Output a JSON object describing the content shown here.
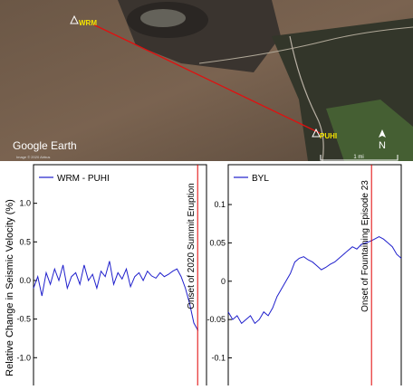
{
  "map": {
    "stations": [
      "WRM",
      "PUHI"
    ],
    "brand": "Google Earth",
    "credit": "Image © 2020 Airbus",
    "north": "N",
    "scale": "1 mi"
  },
  "chart_data": [
    {
      "type": "line",
      "y_label": "Relative Change in Seismic Velocity (%)",
      "x": [
        0,
        1,
        2,
        3,
        4,
        5,
        6,
        7,
        8,
        9,
        10,
        11,
        12,
        13,
        14,
        15,
        16,
        17,
        18,
        19,
        20,
        21,
        22,
        23,
        24,
        25,
        26,
        27,
        28,
        29,
        30,
        31,
        32,
        33,
        34,
        35,
        36,
        37,
        38,
        39
      ],
      "xlim": [
        0,
        41
      ],
      "series": [
        {
          "name": "WRM - PUHI",
          "color": "#1f1fcc",
          "values": [
            -0.1,
            0.05,
            -0.2,
            0.1,
            -0.05,
            0.15,
            0.0,
            0.2,
            -0.1,
            0.05,
            0.1,
            -0.05,
            0.2,
            0.0,
            0.08,
            -0.1,
            0.12,
            0.05,
            0.25,
            -0.05,
            0.1,
            0.02,
            0.15,
            -0.08,
            0.05,
            0.1,
            0.0,
            0.12,
            0.06,
            0.03,
            0.1,
            0.05,
            0.08,
            0.12,
            0.15,
            0.05,
            -0.1,
            -0.3,
            -0.55,
            -0.65
          ]
        }
      ],
      "ylim": [
        -1.36,
        1.5
      ],
      "yticks": [
        {
          "value": -1,
          "label": "-1.0"
        },
        -0.5,
        {
          "value": 0,
          "label": "0.0"
        },
        0.5,
        {
          "value": 1,
          "label": "1.0"
        }
      ],
      "vline": {
        "x": 38.9,
        "label": "Onset of 2020 Summit Eruption",
        "color": "#e00000"
      }
    },
    {
      "type": "line",
      "x": [
        0,
        1,
        2,
        3,
        4,
        5,
        6,
        7,
        8,
        9,
        10,
        11,
        12,
        13,
        14,
        15,
        16,
        17,
        18,
        19,
        20,
        21,
        22,
        23,
        24,
        25,
        26,
        27,
        28,
        29,
        30,
        31,
        32,
        33,
        34,
        35,
        36,
        37,
        38,
        39
      ],
      "xlim": [
        0,
        39
      ],
      "series": [
        {
          "name": "BYL",
          "color": "#1f1fcc",
          "values": [
            -0.04,
            -0.05,
            -0.045,
            -0.055,
            -0.05,
            -0.045,
            -0.055,
            -0.05,
            -0.04,
            -0.045,
            -0.035,
            -0.02,
            -0.01,
            0.0,
            0.01,
            0.025,
            0.03,
            0.032,
            0.028,
            0.025,
            0.02,
            0.015,
            0.018,
            0.022,
            0.025,
            0.03,
            0.035,
            0.04,
            0.045,
            0.042,
            0.048,
            0.05,
            0.052,
            0.055,
            0.058,
            0.055,
            0.05,
            0.045,
            0.035,
            0.03
          ]
        }
      ],
      "ylim": [
        -0.136,
        0.152
      ],
      "yticks": [
        -0.1,
        -0.05,
        0,
        0.05,
        0.1
      ],
      "vline": {
        "x": 32.3,
        "label": "Onset of Fountaining Episode 23",
        "color": "#e00000"
      }
    }
  ]
}
